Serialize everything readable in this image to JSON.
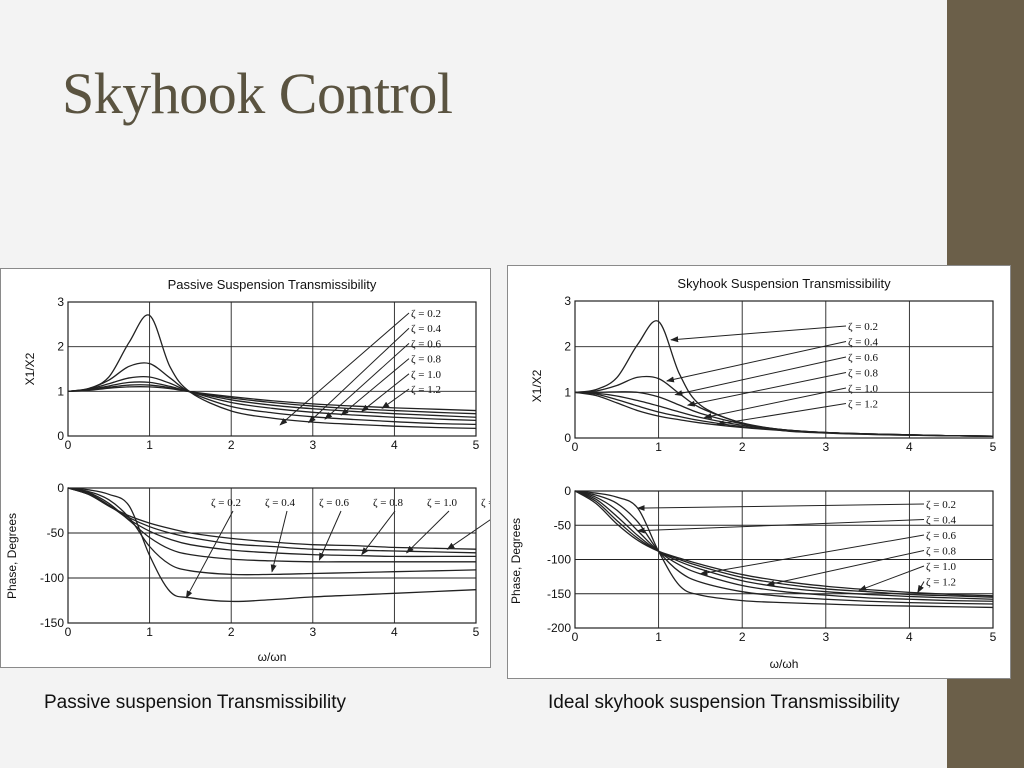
{
  "slide": {
    "title": "Skyhook Control",
    "caption_left": "Passive suspension Transmissibility",
    "caption_right": "Ideal skyhook suspension Transmissibility"
  },
  "colors": {
    "sidebar": "#6b5f49",
    "title": "#5a5340",
    "curve": "#222222"
  },
  "chart_data": [
    {
      "id": "passive",
      "type": "line",
      "title": "Passive Suspension Transmissibility",
      "xlabel": "ω/ωn",
      "zeta_label_prefix": "ζ = ",
      "zetas": [
        "0.2",
        "0.4",
        "0.6",
        "0.8",
        "1.0",
        "1.2"
      ],
      "x": [
        0,
        0.25,
        0.5,
        0.75,
        1,
        1.25,
        1.5,
        2,
        2.5,
        3,
        3.5,
        4,
        4.5,
        5
      ],
      "magnitude": {
        "ylabel": "X1/X2",
        "ylim": [
          0,
          3
        ],
        "yticks": [
          0,
          1,
          2,
          3
        ],
        "xlim": [
          0,
          5
        ],
        "xticks": [
          0,
          1,
          2,
          3,
          4,
          5
        ],
        "series": [
          {
            "zeta": "0.2",
            "values": [
              1,
              1.06,
              1.32,
              2.1,
              2.7,
              1.55,
              0.98,
              0.56,
              0.4,
              0.31,
              0.26,
              0.22,
              0.19,
              0.17
            ]
          },
          {
            "zeta": "0.4",
            "values": [
              1,
              1.06,
              1.25,
              1.56,
              1.62,
              1.3,
              0.98,
              0.66,
              0.52,
              0.43,
              0.37,
              0.32,
              0.28,
              0.26
            ]
          },
          {
            "zeta": "0.6",
            "values": [
              1,
              1.05,
              1.17,
              1.3,
              1.32,
              1.18,
              0.99,
              0.75,
              0.62,
              0.53,
              0.47,
              0.42,
              0.38,
              0.35
            ]
          },
          {
            "zeta": "0.8",
            "values": [
              1,
              1.04,
              1.12,
              1.2,
              1.2,
              1.11,
              0.99,
              0.81,
              0.69,
              0.61,
              0.55,
              0.5,
              0.46,
              0.42
            ]
          },
          {
            "zeta": "1.0",
            "values": [
              1,
              1.03,
              1.09,
              1.14,
              1.14,
              1.08,
              0.99,
              0.85,
              0.75,
              0.67,
              0.61,
              0.57,
              0.53,
              0.5
            ]
          },
          {
            "zeta": "1.2",
            "values": [
              1,
              1.02,
              1.07,
              1.1,
              1.1,
              1.06,
              0.99,
              0.88,
              0.79,
              0.72,
              0.67,
              0.63,
              0.6,
              0.57
            ]
          }
        ]
      },
      "phase": {
        "ylabel": "Phase, Degrees",
        "ylim": [
          -150,
          0
        ],
        "yticks": [
          0,
          -50,
          -100,
          -150
        ],
        "xlim": [
          0,
          5
        ],
        "xticks": [
          0,
          1,
          2,
          3,
          4,
          5
        ],
        "series": [
          {
            "zeta": "0.2",
            "values": [
              0,
              -2,
              -7,
              -20,
              -75,
              -115,
              -122,
              -126,
              -124,
              -121,
              -119,
              -117,
              -115,
              -113
            ]
          },
          {
            "zeta": "0.4",
            "values": [
              0,
              -4,
              -13,
              -33,
              -65,
              -85,
              -92,
              -96,
              -96,
              -95,
              -94,
              -93,
              -92,
              -91
            ]
          },
          {
            "zeta": "0.6",
            "values": [
              0,
              -5,
              -17,
              -36,
              -55,
              -68,
              -74,
              -79,
              -81,
              -82,
              -82,
              -82,
              -82,
              -82
            ]
          },
          {
            "zeta": "0.8",
            "values": [
              0,
              -6,
              -19,
              -35,
              -48,
              -57,
              -63,
              -69,
              -72,
              -74,
              -75,
              -76,
              -76,
              -76
            ]
          },
          {
            "zeta": "1.0",
            "values": [
              0,
              -7,
              -20,
              -33,
              -43,
              -50,
              -55,
              -62,
              -65,
              -68,
              -69,
              -70,
              -71,
              -72
            ]
          },
          {
            "zeta": "1.2",
            "values": [
              0,
              -7,
              -20,
              -31,
              -39,
              -45,
              -50,
              -56,
              -60,
              -63,
              -64,
              -66,
              -67,
              -68
            ]
          }
        ]
      }
    },
    {
      "id": "skyhook",
      "type": "line",
      "title": "Skyhook Suspension Transmissibility",
      "xlabel": "ω/ωh",
      "zeta_label_prefix": "ζ = ",
      "zetas": [
        "0.2",
        "0.4",
        "0.6",
        "0.8",
        "1.0",
        "1.2"
      ],
      "x": [
        0,
        0.25,
        0.5,
        0.75,
        1,
        1.25,
        1.5,
        2,
        2.5,
        3,
        3.5,
        4,
        4.5,
        5
      ],
      "magnitude": {
        "ylabel": "X1/X2",
        "ylim": [
          0,
          3
        ],
        "yticks": [
          0,
          1,
          2,
          3
        ],
        "xlim": [
          0,
          5
        ],
        "xticks": [
          0,
          1,
          2,
          3,
          4,
          5
        ],
        "series": [
          {
            "zeta": "0.2",
            "values": [
              1,
              1.06,
              1.32,
              2.05,
              2.55,
              1.4,
              0.72,
              0.32,
              0.16,
              0.11,
              0.08,
              0.06,
              0.05,
              0.04
            ]
          },
          {
            "zeta": "0.4",
            "values": [
              1,
              1.03,
              1.15,
              1.33,
              1.3,
              0.97,
              0.66,
              0.33,
              0.18,
              0.12,
              0.09,
              0.07,
              0.05,
              0.04
            ]
          },
          {
            "zeta": "0.6",
            "values": [
              1,
              1.0,
              1.01,
              1.0,
              0.9,
              0.72,
              0.54,
              0.31,
              0.18,
              0.12,
              0.09,
              0.07,
              0.05,
              0.04
            ]
          },
          {
            "zeta": "0.8",
            "values": [
              1,
              0.98,
              0.92,
              0.82,
              0.7,
              0.57,
              0.45,
              0.28,
              0.18,
              0.12,
              0.09,
              0.07,
              0.05,
              0.04
            ]
          },
          {
            "zeta": "1.0",
            "values": [
              1,
              0.96,
              0.84,
              0.7,
              0.57,
              0.47,
              0.38,
              0.25,
              0.17,
              0.12,
              0.09,
              0.07,
              0.05,
              0.04
            ]
          },
          {
            "zeta": "1.2",
            "values": [
              1,
              0.93,
              0.77,
              0.6,
              0.48,
              0.4,
              0.33,
              0.23,
              0.16,
              0.11,
              0.08,
              0.06,
              0.05,
              0.04
            ]
          }
        ]
      },
      "phase": {
        "ylabel": "Phase, Degrees",
        "ylim": [
          -200,
          0
        ],
        "yticks": [
          0,
          -50,
          -100,
          -150,
          -200
        ],
        "xlim": [
          0,
          5
        ],
        "xticks": [
          0,
          1,
          2,
          3,
          4,
          5
        ],
        "series": [
          {
            "zeta": "0.2",
            "values": [
              0,
              -3,
              -9,
              -25,
              -88,
              -138,
              -152,
              -160,
              -163,
              -165,
              -167,
              -168,
              -169,
              -170
            ]
          },
          {
            "zeta": "0.4",
            "values": [
              0,
              -6,
              -18,
              -45,
              -88,
              -118,
              -133,
              -147,
              -154,
              -158,
              -161,
              -163,
              -164,
              -165
            ]
          },
          {
            "zeta": "0.6",
            "values": [
              0,
              -9,
              -28,
              -58,
              -88,
              -108,
              -121,
              -138,
              -147,
              -152,
              -156,
              -158,
              -160,
              -161
            ]
          },
          {
            "zeta": "0.8",
            "values": [
              0,
              -12,
              -37,
              -65,
              -88,
              -103,
              -114,
              -131,
              -141,
              -147,
              -151,
              -154,
              -156,
              -158
            ]
          },
          {
            "zeta": "1.0",
            "values": [
              0,
              -15,
              -43,
              -69,
              -88,
              -100,
              -110,
              -126,
              -136,
              -143,
              -147,
              -151,
              -153,
              -155
            ]
          },
          {
            "zeta": "1.2",
            "values": [
              0,
              -18,
              -48,
              -72,
              -88,
              -98,
              -107,
              -122,
              -132,
              -139,
              -144,
              -148,
              -151,
              -153
            ]
          }
        ]
      }
    }
  ]
}
